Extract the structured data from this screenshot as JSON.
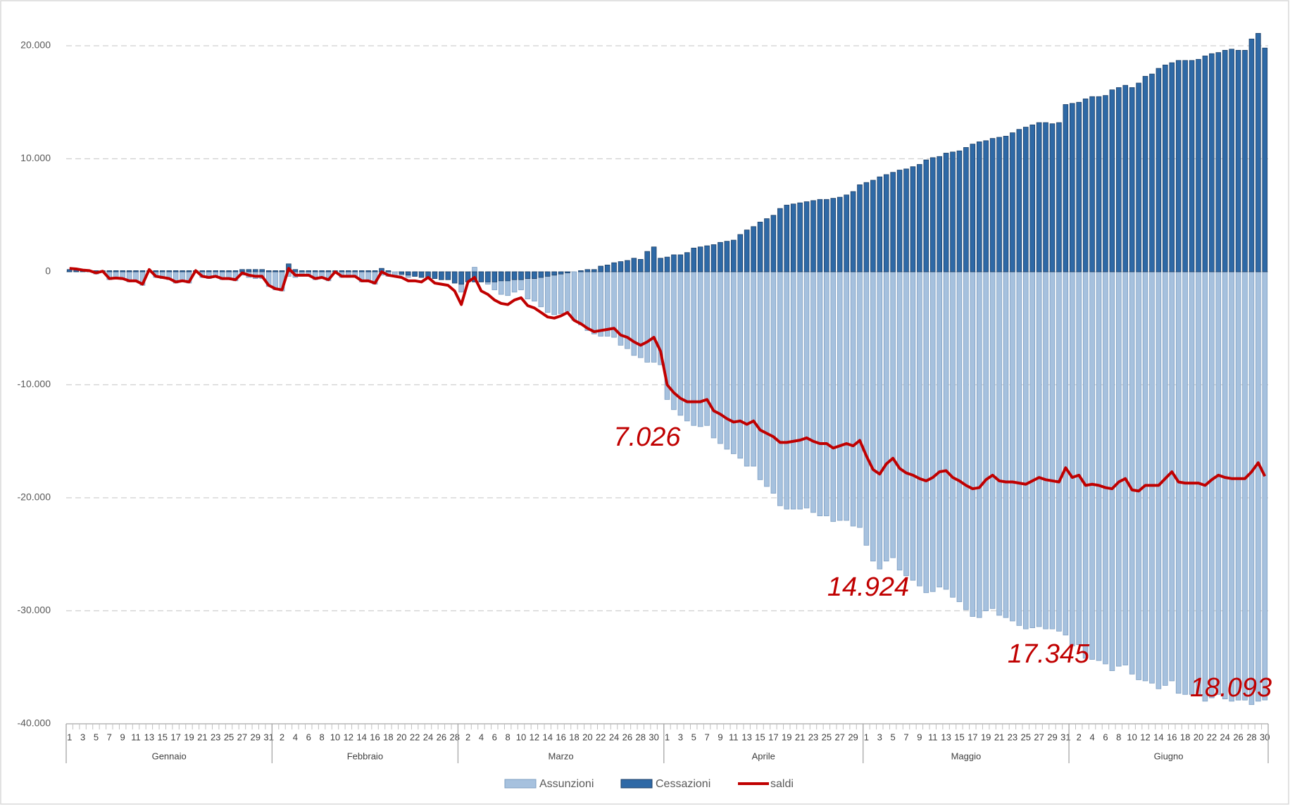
{
  "chart_data": {
    "type": "bar",
    "ylim": [
      -40000,
      20000
    ],
    "yticks": [
      {
        "value": 20000,
        "label": "20.000"
      },
      {
        "value": 10000,
        "label": "10.000"
      },
      0,
      {
        "value": -10000,
        "label": "-10.000"
      },
      {
        "value": -20000,
        "label": "-20.000"
      },
      {
        "value": -30000,
        "label": "-30.000"
      },
      {
        "value": -40000,
        "label": "-40.000"
      }
    ],
    "grid": true,
    "legend": "bottom",
    "categories": [
      "1",
      null,
      "3",
      null,
      "5",
      null,
      "7",
      null,
      "9",
      null,
      "11",
      null,
      "13",
      null,
      "15",
      null,
      "17",
      null,
      "19",
      null,
      "21",
      null,
      "23",
      null,
      "25",
      null,
      "27",
      null,
      "29",
      null,
      "31",
      null,
      "2",
      null,
      "4",
      null,
      "6",
      null,
      "8",
      null,
      "10",
      null,
      "12",
      null,
      "14",
      null,
      "16",
      null,
      "18",
      null,
      "20",
      null,
      "22",
      null,
      "24",
      null,
      "26",
      null,
      "28",
      null,
      "2",
      null,
      "4",
      null,
      "6",
      null,
      "8",
      null,
      "10",
      null,
      "12",
      null,
      "14",
      null,
      "16",
      null,
      "18",
      null,
      "20",
      null,
      "22",
      null,
      "24",
      null,
      "26",
      null,
      "28",
      null,
      "30",
      null,
      "1",
      null,
      "3",
      null,
      "5",
      null,
      "7",
      null,
      "9",
      null,
      "11",
      null,
      "13",
      null,
      "15",
      null,
      "17",
      null,
      "19",
      null,
      "21",
      null,
      "23",
      null,
      "25",
      null,
      "27",
      null,
      "29",
      null,
      "1",
      null,
      "3",
      null,
      "5",
      null,
      "7",
      null,
      "9",
      null,
      "11",
      null,
      "13",
      null,
      "15",
      null,
      "17",
      null,
      "19",
      null,
      "21",
      null,
      "23",
      null,
      "25",
      null,
      "27",
      null,
      "29",
      null,
      "31",
      null,
      "2",
      null,
      "4",
      null,
      "6",
      null,
      "8",
      null,
      "10",
      null,
      "12",
      null,
      "14",
      null,
      "16",
      null,
      "18",
      null,
      "20",
      null,
      "22",
      null,
      "24",
      null,
      "26",
      null,
      "28",
      null,
      "30"
    ],
    "groups": [
      {
        "label": "Gennaio",
        "count": 31
      },
      {
        "label": "Febbraio",
        "count": 28
      },
      {
        "label": "Marzo",
        "count": 31
      },
      {
        "label": "Aprile",
        "count": 30
      },
      {
        "label": "Maggio",
        "count": 31
      },
      {
        "label": "Giugno",
        "count": 30
      }
    ],
    "series": [
      {
        "name": "Assunzioni",
        "type": "bar",
        "color": "#a6c1de",
        "values": [
          100,
          100,
          50,
          0,
          -200,
          -50,
          -700,
          -650,
          -700,
          -900,
          -900,
          -1200,
          100,
          -500,
          -600,
          -700,
          -1000,
          -900,
          -1000,
          0,
          -500,
          -600,
          -500,
          -700,
          -700,
          -800,
          -300,
          -500,
          -600,
          -600,
          -1300,
          -1600,
          -1700,
          -400,
          -500,
          -400,
          -400,
          -700,
          -600,
          -800,
          -100,
          -500,
          -500,
          -500,
          -900,
          -900,
          -1100,
          -300,
          -400,
          -400,
          -300,
          -500,
          -400,
          -400,
          0,
          -400,
          -400,
          -500,
          -700,
          -1800,
          0,
          400,
          -800,
          -1100,
          -1600,
          -2000,
          -2100,
          -1800,
          -1600,
          -2400,
          -2600,
          -3100,
          -3600,
          -3800,
          -3700,
          -3500,
          -4300,
          -4700,
          -5200,
          -5500,
          -5700,
          -5700,
          -5800,
          -6500,
          -6800,
          -7400,
          -7600,
          -8000,
          -8000,
          -8226,
          -11300,
          -12200,
          -12700,
          -13200,
          -13600,
          -13700,
          -13600,
          -14700,
          -15200,
          -15700,
          -16100,
          -16500,
          -17200,
          -17200,
          -18400,
          -19000,
          -19600,
          -20700,
          -21000,
          -21000,
          -21000,
          -20900,
          -21300,
          -21600,
          -21600,
          -22100,
          -22000,
          -22000,
          -22500,
          -22624,
          -24200,
          -25600,
          -26300,
          -25600,
          -25300,
          -26400,
          -26900,
          -27300,
          -27800,
          -28400,
          -28300,
          -27900,
          -28100,
          -28800,
          -29200,
          -29900,
          -30500,
          -30600,
          -30000,
          -29800,
          -30400,
          -30600,
          -30900,
          -31300,
          -31600,
          -31500,
          -31400,
          -31600,
          -31600,
          -31800,
          -32145,
          -33100,
          -33000,
          -34200,
          -34300,
          -34400,
          -34700,
          -35300,
          -34900,
          -34800,
          -35600,
          -36100,
          -36200,
          -36400,
          -36900,
          -36600,
          -36200,
          -37300,
          -37400,
          -37400,
          -37500,
          -38000,
          -37700,
          -37400,
          -37800,
          -38000,
          -37900,
          -37900,
          -38300,
          -38000,
          -37893
        ]
      },
      {
        "name": "Cessazioni",
        "type": "bar",
        "color": "#2e69a6",
        "values": [
          200,
          150,
          100,
          100,
          100,
          100,
          100,
          100,
          100,
          100,
          100,
          100,
          100,
          100,
          100,
          100,
          100,
          100,
          100,
          100,
          100,
          100,
          100,
          100,
          100,
          100,
          200,
          200,
          200,
          200,
          100,
          100,
          100,
          700,
          200,
          100,
          100,
          100,
          100,
          100,
          100,
          100,
          100,
          100,
          100,
          100,
          100,
          300,
          100,
          0,
          -200,
          -300,
          -400,
          -500,
          -500,
          -600,
          -700,
          -700,
          -1000,
          -1100,
          -900,
          -900,
          -900,
          -900,
          -900,
          -800,
          -800,
          -700,
          -700,
          -600,
          -600,
          -500,
          -400,
          -300,
          -200,
          -100,
          0,
          100,
          200,
          200,
          500,
          600,
          800,
          900,
          1000,
          1200,
          1100,
          1800,
          2200,
          1200,
          1300,
          1500,
          1500,
          1700,
          2100,
          2200,
          2300,
          2400,
          2600,
          2700,
          2800,
          3300,
          3700,
          4000,
          4400,
          4700,
          5000,
          5600,
          5900,
          6000,
          6100,
          6200,
          6300,
          6400,
          6400,
          6500,
          6600,
          6800,
          7100,
          7700,
          7900,
          8100,
          8400,
          8600,
          8800,
          9000,
          9100,
          9300,
          9500,
          9900,
          10100,
          10200,
          10500,
          10600,
          10700,
          11000,
          11300,
          11500,
          11600,
          11800,
          11900,
          12000,
          12300,
          12600,
          12800,
          13000,
          13200,
          13200,
          13100,
          13200,
          14800,
          14900,
          15000,
          15300,
          15500,
          15500,
          15600,
          16100,
          16300,
          16500,
          16300,
          16700,
          17300,
          17500,
          18000,
          18300,
          18500,
          18700,
          18700,
          18700,
          18800,
          19100,
          19300,
          19400,
          19600,
          19700,
          19600,
          19600,
          20600,
          21100,
          19800
        ]
      },
      {
        "name": "saldi",
        "type": "line",
        "color": "#c00000",
        "values": [
          300,
          250,
          150,
          100,
          -100,
          50,
          -600,
          -550,
          -600,
          -800,
          -800,
          -1100,
          200,
          -400,
          -500,
          -600,
          -900,
          -800,
          -900,
          100,
          -400,
          -500,
          -400,
          -600,
          -600,
          -700,
          -100,
          -300,
          -400,
          -400,
          -1200,
          -1500,
          -1600,
          300,
          -300,
          -300,
          -300,
          -600,
          -500,
          -700,
          0,
          -400,
          -400,
          -400,
          -800,
          -800,
          -1000,
          0,
          -300,
          -400,
          -500,
          -800,
          -800,
          -900,
          -500,
          -1000,
          -1100,
          -1200,
          -1700,
          -2900,
          -900,
          -500,
          -1700,
          -2000,
          -2500,
          -2800,
          -2900,
          -2500,
          -2300,
          -3000,
          -3200,
          -3600,
          -4000,
          -4100,
          -3900,
          -3600,
          -4300,
          -4600,
          -5000,
          -5300,
          -5200,
          -5100,
          -5000,
          -5600,
          -5800,
          -6200,
          -6500,
          -6200,
          -5800,
          -7026,
          -10000,
          -10700,
          -11200,
          -11500,
          -11500,
          -11500,
          -11300,
          -12300,
          -12600,
          -13000,
          -13300,
          -13200,
          -13500,
          -13200,
          -14000,
          -14300,
          -14600,
          -15100,
          -15100,
          -15000,
          -14900,
          -14700,
          -15000,
          -15200,
          -15200,
          -15600,
          -15400,
          -15200,
          -15400,
          -14924,
          -16300,
          -17500,
          -17900,
          -17000,
          -16500,
          -17400,
          -17800,
          -18000,
          -18300,
          -18500,
          -18200,
          -17700,
          -17600,
          -18200,
          -18500,
          -18900,
          -19200,
          -19100,
          -18400,
          -18000,
          -18500,
          -18600,
          -18600,
          -18700,
          -18800,
          -18500,
          -18200,
          -18400,
          -18500,
          -18600,
          -17345,
          -18200,
          -18000,
          -18900,
          -18800,
          -18900,
          -19100,
          -19200,
          -18600,
          -18300,
          -19300,
          -19400,
          -18900,
          -18900,
          -18900,
          -18300,
          -17700,
          -18600,
          -18700,
          -18700,
          -18700,
          -18900,
          -18400,
          -18000,
          -18200,
          -18300,
          -18300,
          -18300,
          -17700,
          -16900,
          -18093
        ]
      }
    ],
    "annotations": [
      "7.026",
      "14.924",
      "17.345",
      "18.093"
    ]
  }
}
